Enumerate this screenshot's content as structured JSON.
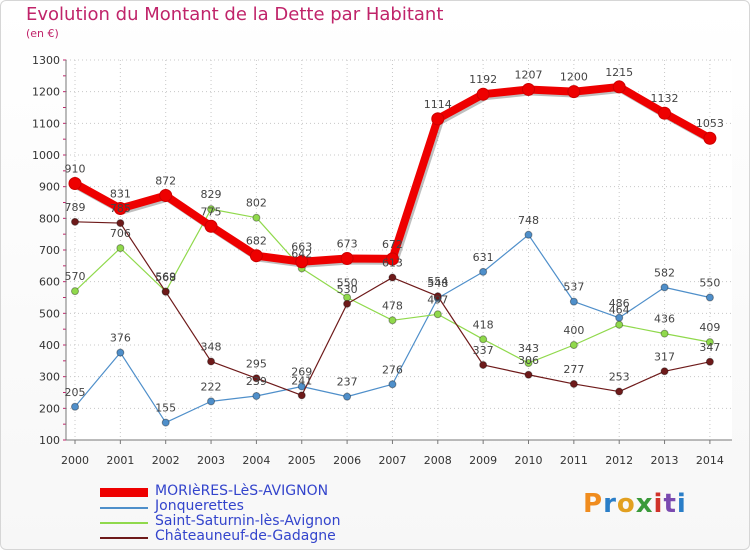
{
  "header": {
    "title": "Evolution du Montant de la Dette par Habitant",
    "subtitle": "(en €)"
  },
  "logo": {
    "text": "Proxiti",
    "colors": [
      "#f08c1e",
      "#2a7ec8",
      "#e2a020",
      "#3a9a3a",
      "#d0322a",
      "#7a4ab0",
      "#2a7ec8"
    ]
  },
  "chart_data": {
    "type": "line",
    "title": "Evolution du Montant de la Dette par Habitant",
    "subtitle": "(en €)",
    "xlabel": "",
    "ylabel": "",
    "x": [
      "2000",
      "2001",
      "2002",
      "2003",
      "2004",
      "2005",
      "2006",
      "2007",
      "2008",
      "2009",
      "2010",
      "2011",
      "2012",
      "2013",
      "2014"
    ],
    "ylim": [
      100,
      1300
    ],
    "yticks": [
      100,
      200,
      300,
      400,
      500,
      600,
      700,
      800,
      900,
      1000,
      1100,
      1200,
      1300
    ],
    "grid": true,
    "legend_position": "bottom",
    "series": [
      {
        "name": "MORIèRES-LèS-AVIGNON",
        "color": "#ee0000",
        "values": [
          910,
          831,
          872,
          775,
          682,
          663,
          673,
          672,
          1114,
          1192,
          1207,
          1200,
          1215,
          1132,
          1053
        ],
        "labels": [
          "910",
          "831",
          "872",
          "775",
          "682",
          "663",
          "673",
          "672",
          "1114",
          "1192",
          "1207",
          "1200",
          "1215",
          "1132",
          "1053"
        ]
      },
      {
        "name": "Jonquerettes",
        "color": "#4f8fca",
        "values": [
          205,
          376,
          155,
          222,
          239,
          269,
          237,
          276,
          548,
          631,
          748,
          537,
          486,
          582,
          550
        ],
        "labels": [
          "205",
          "376",
          "155",
          "222",
          "239",
          "269",
          "237",
          "276",
          "548",
          "631",
          "748",
          "537",
          "486",
          "582",
          "550"
        ]
      },
      {
        "name": "Saint-Saturnin-lès-Avignon",
        "color": "#90d94c",
        "values": [
          570,
          706,
          569,
          829,
          802,
          642,
          550,
          478,
          497,
          418,
          343,
          400,
          464,
          436,
          409
        ],
        "labels": [
          "570",
          "706",
          "569",
          "829",
          "802",
          "642",
          "550",
          "478",
          "497",
          "418",
          "343",
          "400",
          "464",
          "436",
          "409"
        ]
      },
      {
        "name": "Châteauneuf-de-Gadagne",
        "color": "#6e1a1a",
        "values": [
          789,
          785,
          568,
          348,
          295,
          241,
          530,
          613,
          554,
          337,
          306,
          277,
          253,
          317,
          347
        ],
        "labels": [
          "789",
          "785",
          "568",
          "348",
          "295",
          "241",
          "530",
          "613",
          "554",
          "337",
          "306",
          "277",
          "253",
          "317",
          "347"
        ]
      }
    ]
  }
}
